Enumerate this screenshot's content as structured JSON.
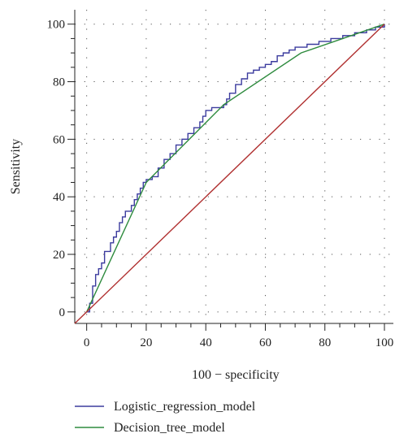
{
  "chart_data": {
    "type": "line",
    "title": "",
    "xlabel": "100 − specificity",
    "ylabel": "Sensitivity",
    "xlim": [
      -4,
      103
    ],
    "ylim": [
      -4,
      105
    ],
    "x_ticks": [
      "0",
      "20",
      "40",
      "60",
      "80",
      "100"
    ],
    "y_ticks": [
      "0",
      "20",
      "40",
      "60",
      "80",
      "100"
    ],
    "grid": true,
    "legend_position": "bottom",
    "colors": {
      "logistic": "#3b3b9e",
      "tree": "#2e8b3e",
      "diagonal": "#b03030"
    },
    "series": [
      {
        "name": "Logistic_regression_model",
        "style": "step",
        "x": [
          0,
          1,
          2,
          2,
          3,
          3,
          4,
          5,
          6,
          6,
          8,
          9,
          10,
          11,
          12,
          13,
          15,
          16,
          17,
          18,
          19,
          20,
          22,
          24,
          26,
          28,
          30,
          32,
          34,
          36,
          38,
          39,
          40,
          42,
          44,
          46,
          47,
          48,
          50,
          52,
          54,
          56,
          58,
          60,
          62,
          64,
          66,
          68,
          70,
          74,
          78,
          82,
          86,
          90,
          94,
          97,
          100
        ],
        "y": [
          0,
          3,
          6,
          9,
          11,
          13,
          15,
          17,
          19,
          21,
          24,
          26,
          28,
          31,
          33,
          35,
          37,
          39,
          41,
          43,
          45,
          46,
          47,
          50,
          53,
          55,
          58,
          60,
          62,
          64,
          66,
          68,
          70,
          71,
          71,
          72,
          74,
          76,
          79,
          81,
          83,
          84,
          85,
          86,
          87,
          89,
          90,
          91,
          92,
          93,
          94,
          95,
          96,
          97,
          98,
          99,
          100
        ]
      },
      {
        "name": "Decision_tree_model",
        "style": "line",
        "x": [
          0,
          20,
          46,
          72,
          100
        ],
        "y": [
          0,
          45,
          72,
          90,
          100
        ]
      },
      {
        "name": "",
        "style": "line",
        "x": [
          -4,
          100
        ],
        "y": [
          -4,
          100
        ]
      }
    ]
  }
}
